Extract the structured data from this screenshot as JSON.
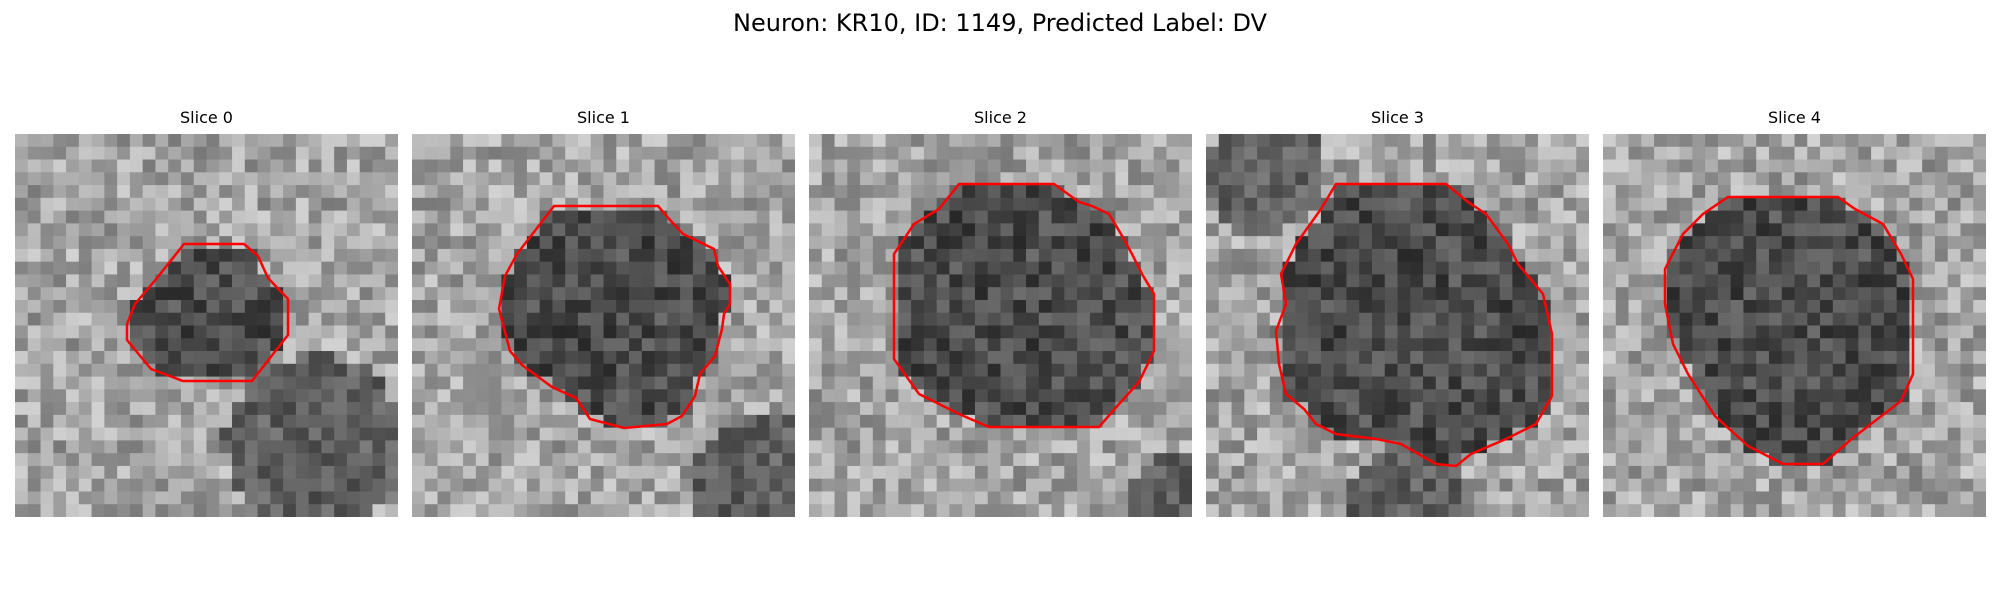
{
  "figure": {
    "title": "Neuron: KR10, ID: 1149, Predicted Label: DV"
  },
  "panels": [
    {
      "title": "Slice 0"
    },
    {
      "title": "Slice 1"
    },
    {
      "title": "Slice 2"
    },
    {
      "title": "Slice 3"
    },
    {
      "title": "Slice 4"
    }
  ],
  "colors": {
    "contour": "#ff0000",
    "background": "#ffffff",
    "text": "#000000"
  }
}
